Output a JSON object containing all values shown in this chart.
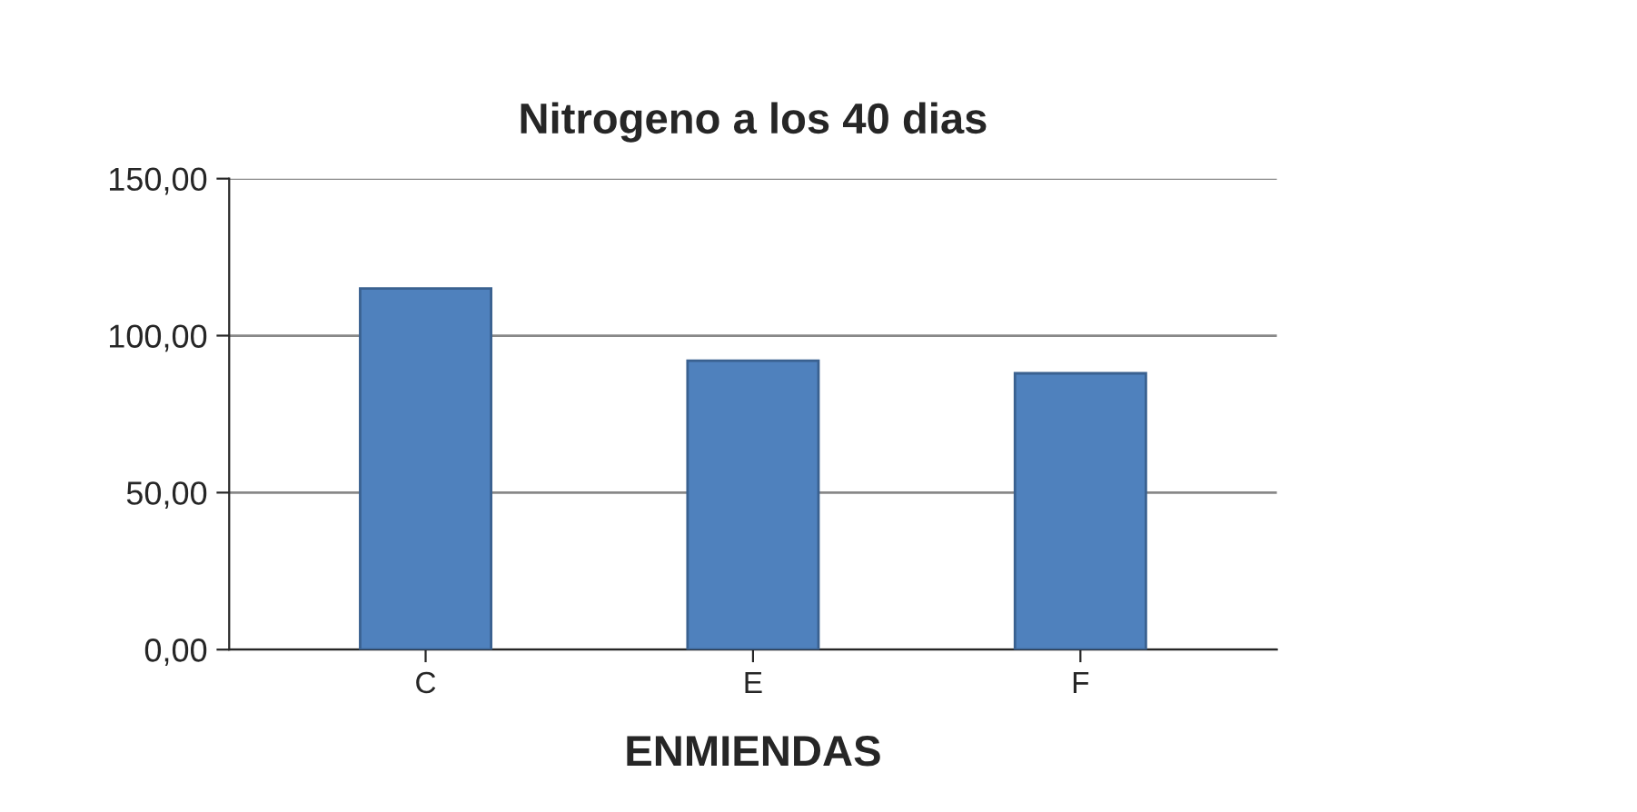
{
  "chart_data": {
    "type": "bar",
    "title": "Nitrogeno a los 40 dias",
    "xlabel": "ENMIENDAS",
    "categories": [
      "C",
      "E",
      "F"
    ],
    "values": [
      115,
      92,
      88
    ],
    "color": "#4f81bd",
    "ylim": [
      0,
      150
    ],
    "yticks": [
      {
        "value": 0,
        "label": "0,00"
      },
      {
        "value": 50,
        "label": "50,00"
      },
      {
        "value": 100,
        "label": "100,00"
      },
      {
        "value": 150,
        "label": "150,00"
      }
    ],
    "grid": "y"
  }
}
